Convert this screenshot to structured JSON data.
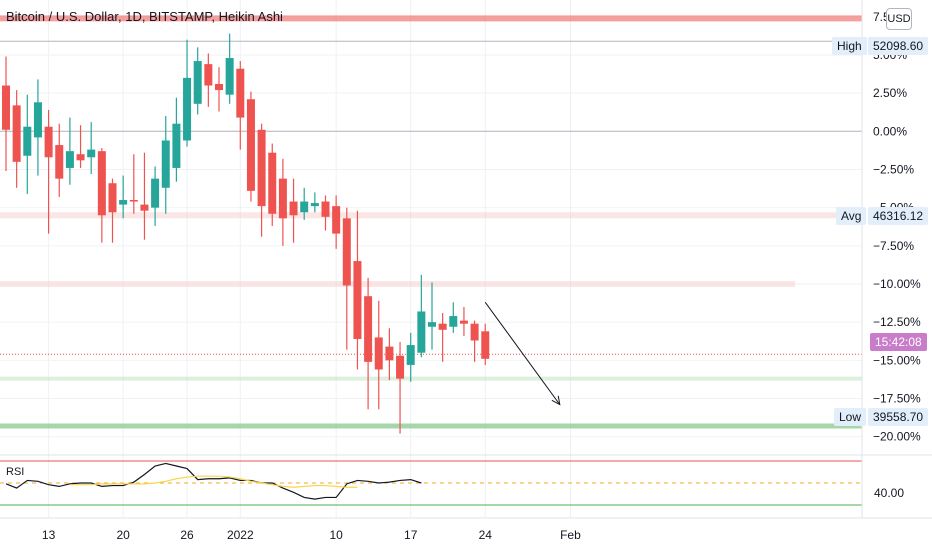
{
  "header": {
    "title": "Bitcoin / U.S. Dollar, 1D, BITSTAMP, Heikin Ashi",
    "currency_button": "USD"
  },
  "price_labels": {
    "high_label": "High",
    "high_value": "52098.60",
    "avg_label": "Avg",
    "avg_value": "46316.12",
    "low_label": "Low",
    "low_value": "39558.70",
    "countdown": "15:42:08"
  },
  "rsi": {
    "label": "RSI",
    "level_label": "40.00"
  },
  "chart_data": {
    "type": "candlestick",
    "style": "Heikin Ashi",
    "y_axis_unit": "percent change",
    "y_ticks": [
      "7.50%",
      "5.00%",
      "2.50%",
      "0.00%",
      "−2.50%",
      "−5.00%",
      "−7.50%",
      "−10.00%",
      "−12.50%",
      "−15.00%",
      "−17.50%",
      "−20.00%"
    ],
    "y_tick_values": [
      7.5,
      5,
      2.5,
      0,
      -2.5,
      -5,
      -7.5,
      -10,
      -12.5,
      -15,
      -17.5,
      -20
    ],
    "ylim": [
      -21.2,
      8.6
    ],
    "x_ticks": [
      "13",
      "20",
      "26",
      "2022",
      "10",
      "17",
      "24",
      "Feb"
    ],
    "x_tick_index": [
      4,
      11,
      17,
      22,
      31,
      38,
      45,
      53
    ],
    "candles": [
      {
        "o": 3.0,
        "c": 0.1,
        "h": 4.9,
        "l": -2.6
      },
      {
        "o": 1.7,
        "c": -2.0,
        "h": 2.7,
        "l": -3.7
      },
      {
        "o": -1.6,
        "c": 0.3,
        "h": 2.4,
        "l": -4.1
      },
      {
        "o": -0.4,
        "c": 1.9,
        "h": 3.4,
        "l": -2.9
      },
      {
        "o": 0.3,
        "c": -1.7,
        "h": 1.4,
        "l": -6.7
      },
      {
        "o": -0.9,
        "c": -3.1,
        "h": 0.5,
        "l": -4.3
      },
      {
        "o": -2.4,
        "c": -1.3,
        "h": 0.9,
        "l": -3.5
      },
      {
        "o": -1.5,
        "c": -1.9,
        "h": 0.4,
        "l": -2.4
      },
      {
        "o": -1.7,
        "c": -1.2,
        "h": 0.6,
        "l": -2.8
      },
      {
        "o": -1.3,
        "c": -5.5,
        "h": -1.1,
        "l": -7.3
      },
      {
        "o": -3.4,
        "c": -5.3,
        "h": -3.1,
        "l": -7.3
      },
      {
        "o": -4.8,
        "c": -4.5,
        "h": -2.9,
        "l": -5.7
      },
      {
        "o": -4.5,
        "c": -4.6,
        "h": -1.5,
        "l": -5.4
      },
      {
        "o": -4.8,
        "c": -5.2,
        "h": -1.4,
        "l": -7.1
      },
      {
        "o": -5.0,
        "c": -3.1,
        "h": -2.3,
        "l": -6.2
      },
      {
        "o": -3.7,
        "c": -0.6,
        "h": 1.0,
        "l": -5.4
      },
      {
        "o": -2.4,
        "c": 0.5,
        "h": 2.2,
        "l": -3.3
      },
      {
        "o": -0.6,
        "c": 3.5,
        "h": 6.0,
        "l": -1.0
      },
      {
        "o": 1.8,
        "c": 4.6,
        "h": 5.5,
        "l": 1.1
      },
      {
        "o": 4.4,
        "c": 3.0,
        "h": 5.1,
        "l": 1.6
      },
      {
        "o": 3.1,
        "c": 2.7,
        "h": 4.2,
        "l": 1.3
      },
      {
        "o": 2.4,
        "c": 4.8,
        "h": 6.4,
        "l": 1.8
      },
      {
        "o": 4.1,
        "c": 0.9,
        "h": 4.6,
        "l": -1.2
      },
      {
        "o": 2.1,
        "c": -3.9,
        "h": 2.6,
        "l": -4.6
      },
      {
        "o": 0.1,
        "c": -4.9,
        "h": 0.5,
        "l": -6.9
      },
      {
        "o": -1.4,
        "c": -5.4,
        "h": -0.8,
        "l": -6.2
      },
      {
        "o": -3.1,
        "c": -5.7,
        "h": -1.8,
        "l": -7.5
      },
      {
        "o": -4.6,
        "c": -5.5,
        "h": -3.1,
        "l": -7.3
      },
      {
        "o": -5.3,
        "c": -4.6,
        "h": -3.7,
        "l": -5.8
      },
      {
        "o": -4.9,
        "c": -4.7,
        "h": -4.0,
        "l": -5.3
      },
      {
        "o": -4.6,
        "c": -5.6,
        "h": -4.2,
        "l": -6.5
      },
      {
        "o": -4.9,
        "c": -6.7,
        "h": -4.2,
        "l": -7.7
      },
      {
        "o": -5.7,
        "c": -10.1,
        "h": -5.0,
        "l": -14.3
      },
      {
        "o": -8.5,
        "c": -13.6,
        "h": -5.2,
        "l": -15.6
      },
      {
        "o": -10.8,
        "c": -15.1,
        "h": -9.6,
        "l": -18.2
      },
      {
        "o": -13.5,
        "c": -15.6,
        "h": -11.1,
        "l": -18.2
      },
      {
        "o": -14.1,
        "c": -15.0,
        "h": -12.9,
        "l": -16.3
      },
      {
        "o": -14.7,
        "c": -16.2,
        "h": -13.8,
        "l": -19.8
      },
      {
        "o": -15.3,
        "c": -14.0,
        "h": -13.2,
        "l": -16.4
      },
      {
        "o": -14.5,
        "c": -11.8,
        "h": -9.4,
        "l": -14.8
      },
      {
        "o": -12.8,
        "c": -12.5,
        "h": -9.9,
        "l": -14.3
      },
      {
        "o": -12.6,
        "c": -13.0,
        "h": -11.9,
        "l": -15.1
      },
      {
        "o": -12.8,
        "c": -12.1,
        "h": -11.2,
        "l": -13.2
      },
      {
        "o": -12.4,
        "c": -12.6,
        "h": -11.5,
        "l": -13.4
      },
      {
        "o": -12.6,
        "c": -13.7,
        "h": -12.4,
        "l": -15.1
      },
      {
        "o": -13.1,
        "c": -14.9,
        "h": -12.6,
        "l": -15.3
      }
    ],
    "rsi_line": [
      40.9,
      40.4,
      41.3,
      41.2,
      40.8,
      40.6,
      40.9,
      41.0,
      41.0,
      40.6,
      40.7,
      40.7,
      41.1,
      42.0,
      43.0,
      43.3,
      43.0,
      42.7,
      41.4,
      41.5,
      41.5,
      41.6,
      41.3,
      41.3,
      41.0,
      41.0,
      40.4,
      39.9,
      39.3,
      39.1,
      39.3,
      39.3,
      40.9,
      41.3,
      41.2,
      41.0,
      41.1,
      41.3,
      41.4,
      41.0
    ],
    "rsi_ma": [
      40.8,
      40.8,
      40.8,
      40.9,
      40.9,
      40.9,
      40.9,
      40.9,
      41.0,
      41.2,
      41.5,
      41.7,
      41.8,
      41.8,
      41.8,
      41.7,
      41.5,
      41.2,
      41.0,
      40.8,
      40.6,
      40.5,
      40.6,
      40.7,
      40.7,
      40.6,
      40.5,
      40.5
    ],
    "rsi_band_upper": 70,
    "rsi_band_lower": 30,
    "rsi_mid_level": 40,
    "horizontal_levels": [
      {
        "value": 7.4,
        "color": "#ef5350",
        "role": "high-zone"
      },
      {
        "value": 5.9,
        "color": "#b2b5be",
        "role": "high-line"
      },
      {
        "value": 0.0,
        "color": "#b2b5be",
        "role": "zero-line"
      },
      {
        "value": -5.5,
        "color": "#f7c9c9",
        "role": "avg-zone"
      },
      {
        "value": -10.0,
        "color": "#f7c9c9",
        "role": "resistance-zone"
      },
      {
        "value": -14.6,
        "color": "#ef5350",
        "role": "last-price"
      },
      {
        "value": -16.2,
        "color": "#c8e6c9",
        "role": "support-zone"
      },
      {
        "value": -19.3,
        "color": "#81c784",
        "role": "low-zone"
      }
    ],
    "trend_arrow": {
      "from_index": 45,
      "from_value": -11.2,
      "to_index": 52,
      "to_value": -17.9
    },
    "colors": {
      "up": "#26a69a",
      "down": "#ef5350",
      "rsi_line": "#131722",
      "rsi_ma": "#f9d64a",
      "rsi_upper": "#ef5350",
      "rsi_lower": "#4caf50",
      "rsi_mid": "#f9a825"
    }
  }
}
